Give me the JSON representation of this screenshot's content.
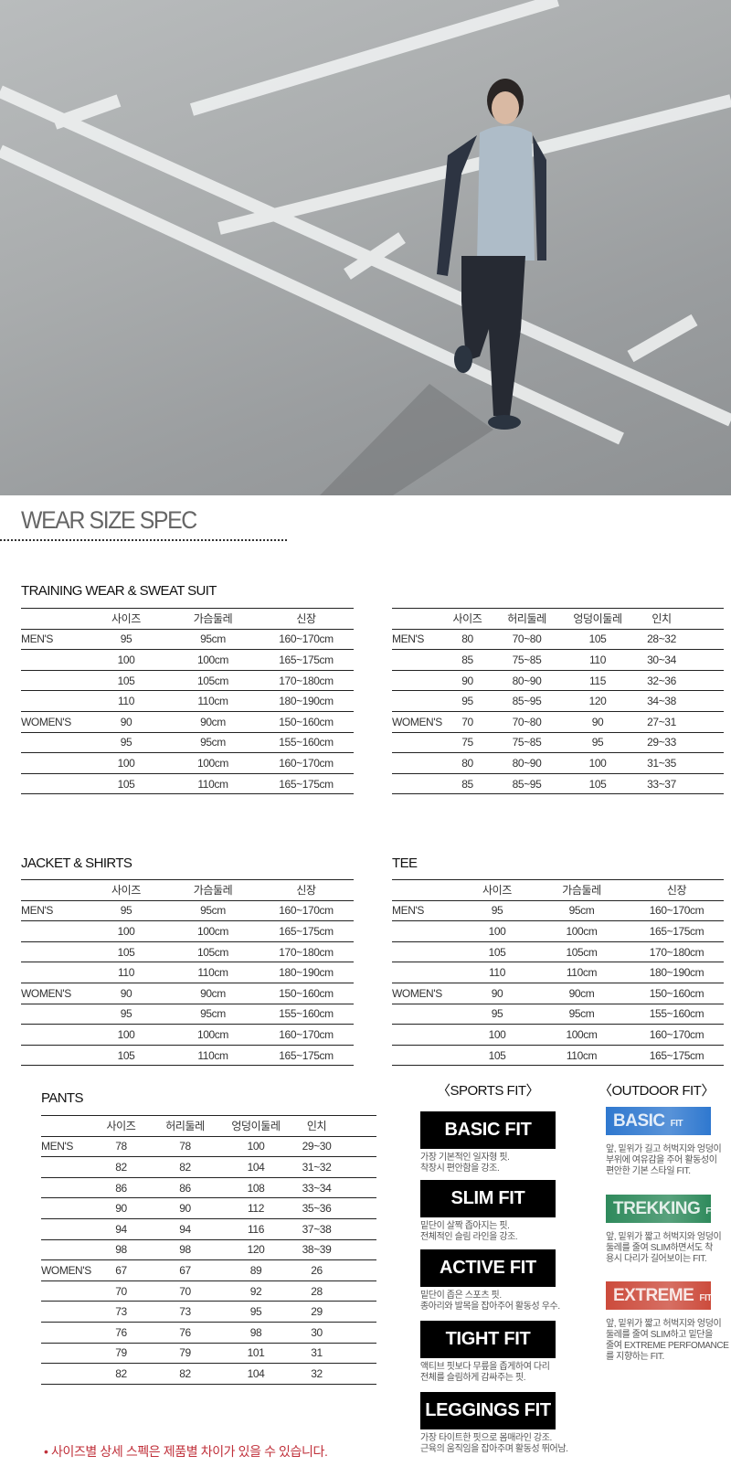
{
  "page_title": "WEAR SIZE SPEC",
  "training": {
    "title": "TRAINING WEAR & SWEAT SUIT",
    "headers": [
      "",
      "사이즈",
      "가슴둘레",
      "신장"
    ],
    "rows": [
      [
        "MEN'S",
        "95",
        "95cm",
        "160~170cm"
      ],
      [
        "",
        "100",
        "100cm",
        "165~175cm"
      ],
      [
        "",
        "105",
        "105cm",
        "170~180cm"
      ],
      [
        "",
        "110",
        "110cm",
        "180~190cm"
      ],
      [
        "WOMEN'S",
        "90",
        "90cm",
        "150~160cm"
      ],
      [
        "",
        "95",
        "95cm",
        "155~160cm"
      ],
      [
        "",
        "100",
        "100cm",
        "160~170cm"
      ],
      [
        "",
        "105",
        "110cm",
        "165~175cm"
      ]
    ]
  },
  "training_pants": {
    "headers": [
      "",
      "사이즈",
      "허리둘레",
      "엉덩이둘레",
      "인치"
    ],
    "rows": [
      [
        "MEN'S",
        "80",
        "70~80",
        "105",
        "28~32"
      ],
      [
        "",
        "85",
        "75~85",
        "110",
        "30~34"
      ],
      [
        "",
        "90",
        "80~90",
        "115",
        "32~36"
      ],
      [
        "",
        "95",
        "85~95",
        "120",
        "34~38"
      ],
      [
        "WOMEN'S",
        "70",
        "70~80",
        "90",
        "27~31"
      ],
      [
        "",
        "75",
        "75~85",
        "95",
        "29~33"
      ],
      [
        "",
        "80",
        "80~90",
        "100",
        "31~35"
      ],
      [
        "",
        "85",
        "85~95",
        "105",
        "33~37"
      ]
    ]
  },
  "jacket": {
    "title": "JACKET & SHIRTS",
    "headers": [
      "",
      "사이즈",
      "가슴둘레",
      "신장"
    ],
    "rows": [
      [
        "MEN'S",
        "95",
        "95cm",
        "160~170cm"
      ],
      [
        "",
        "100",
        "100cm",
        "165~175cm"
      ],
      [
        "",
        "105",
        "105cm",
        "170~180cm"
      ],
      [
        "",
        "110",
        "110cm",
        "180~190cm"
      ],
      [
        "WOMEN'S",
        "90",
        "90cm",
        "150~160cm"
      ],
      [
        "",
        "95",
        "95cm",
        "155~160cm"
      ],
      [
        "",
        "100",
        "100cm",
        "160~170cm"
      ],
      [
        "",
        "105",
        "110cm",
        "165~175cm"
      ]
    ]
  },
  "tee": {
    "title": "TEE",
    "headers": [
      "",
      "사이즈",
      "가슴둘레",
      "신장"
    ],
    "rows": [
      [
        "MEN'S",
        "95",
        "95cm",
        "160~170cm"
      ],
      [
        "",
        "100",
        "100cm",
        "165~175cm"
      ],
      [
        "",
        "105",
        "105cm",
        "170~180cm"
      ],
      [
        "",
        "110",
        "110cm",
        "180~190cm"
      ],
      [
        "WOMEN'S",
        "90",
        "90cm",
        "150~160cm"
      ],
      [
        "",
        "95",
        "95cm",
        "155~160cm"
      ],
      [
        "",
        "100",
        "100cm",
        "160~170cm"
      ],
      [
        "",
        "105",
        "110cm",
        "165~175cm"
      ]
    ]
  },
  "pants": {
    "title": "PANTS",
    "headers": [
      "",
      "사이즈",
      "허리둘레",
      "엉덩이둘레",
      "인치"
    ],
    "rows": [
      [
        "MEN'S",
        "78",
        "78",
        "100",
        "29~30"
      ],
      [
        "",
        "82",
        "82",
        "104",
        "31~32"
      ],
      [
        "",
        "86",
        "86",
        "108",
        "33~34"
      ],
      [
        "",
        "90",
        "90",
        "112",
        "35~36"
      ],
      [
        "",
        "94",
        "94",
        "116",
        "37~38"
      ],
      [
        "",
        "98",
        "98",
        "120",
        "38~39"
      ],
      [
        "WOMEN'S",
        "67",
        "67",
        "89",
        "26"
      ],
      [
        "",
        "70",
        "70",
        "92",
        "28"
      ],
      [
        "",
        "73",
        "73",
        "95",
        "29"
      ],
      [
        "",
        "76",
        "76",
        "98",
        "30"
      ],
      [
        "",
        "79",
        "79",
        "101",
        "31"
      ],
      [
        "",
        "82",
        "82",
        "104",
        "32"
      ]
    ]
  },
  "sports_fit": {
    "title": "〈SPORTS FIT〉",
    "items": [
      {
        "label": "BASIC FIT",
        "desc1": "가장 기본적인 일자형 핏.",
        "desc2": "착장시 편안함을 강조."
      },
      {
        "label": "SLIM FIT",
        "desc1": "밑단이 살짝 좁아지는 핏.",
        "desc2": "전체적인 슬림 라인을 강조."
      },
      {
        "label": "ACTIVE FIT",
        "desc1": "밑단이 좁은 스포츠 핏.",
        "desc2": "종아리와 발목을 잡아주어 활동성 우수."
      },
      {
        "label": "TIGHT FIT",
        "desc1": "액티브 핏보다 무릎을 좁게하여 다리",
        "desc2": "전체를 슬림하게 감싸주는 핏."
      },
      {
        "label": "LEGGINGS FIT",
        "desc1": "가장 타이트한 핏으로 몸매라인 강조.",
        "desc2": "근육의 움직임을 잡아주며 활동성 뛰어남."
      }
    ]
  },
  "outdoor_fit": {
    "title": "〈OUTDOOR FIT〉",
    "items": [
      {
        "label": "BASIC",
        "suffix": "FIT",
        "color": "#2f78cf",
        "desc": [
          "앞, 밑위가 길고 허벅지와 엉덩이",
          "부위에 여유감을 주어 활동성이",
          "편안한 기본 스타일 FIT."
        ]
      },
      {
        "label": "TREKKING",
        "suffix": "FIT",
        "color": "#2f8a5c",
        "desc": [
          "앞, 밑위가 짧고 허벅지와 엉덩이",
          "둘레를 줄여 SLIM하면서도 착",
          "용시 다리가 길어보이는 FIT."
        ]
      },
      {
        "label": "EXTREME",
        "suffix": "FIT",
        "color": "#cc4b3c",
        "desc": [
          "앞, 밑위가 짧고 허벅지와 엉덩이",
          "둘레를 줄여 SLIM하고 밑단을",
          "줄여 EXTREME PERFOMANCE",
          "를 지향하는 FIT."
        ]
      }
    ]
  },
  "footnote": "• 사이즈별 상세 스펙은 제품별 차이가 있을 수 있습니다."
}
